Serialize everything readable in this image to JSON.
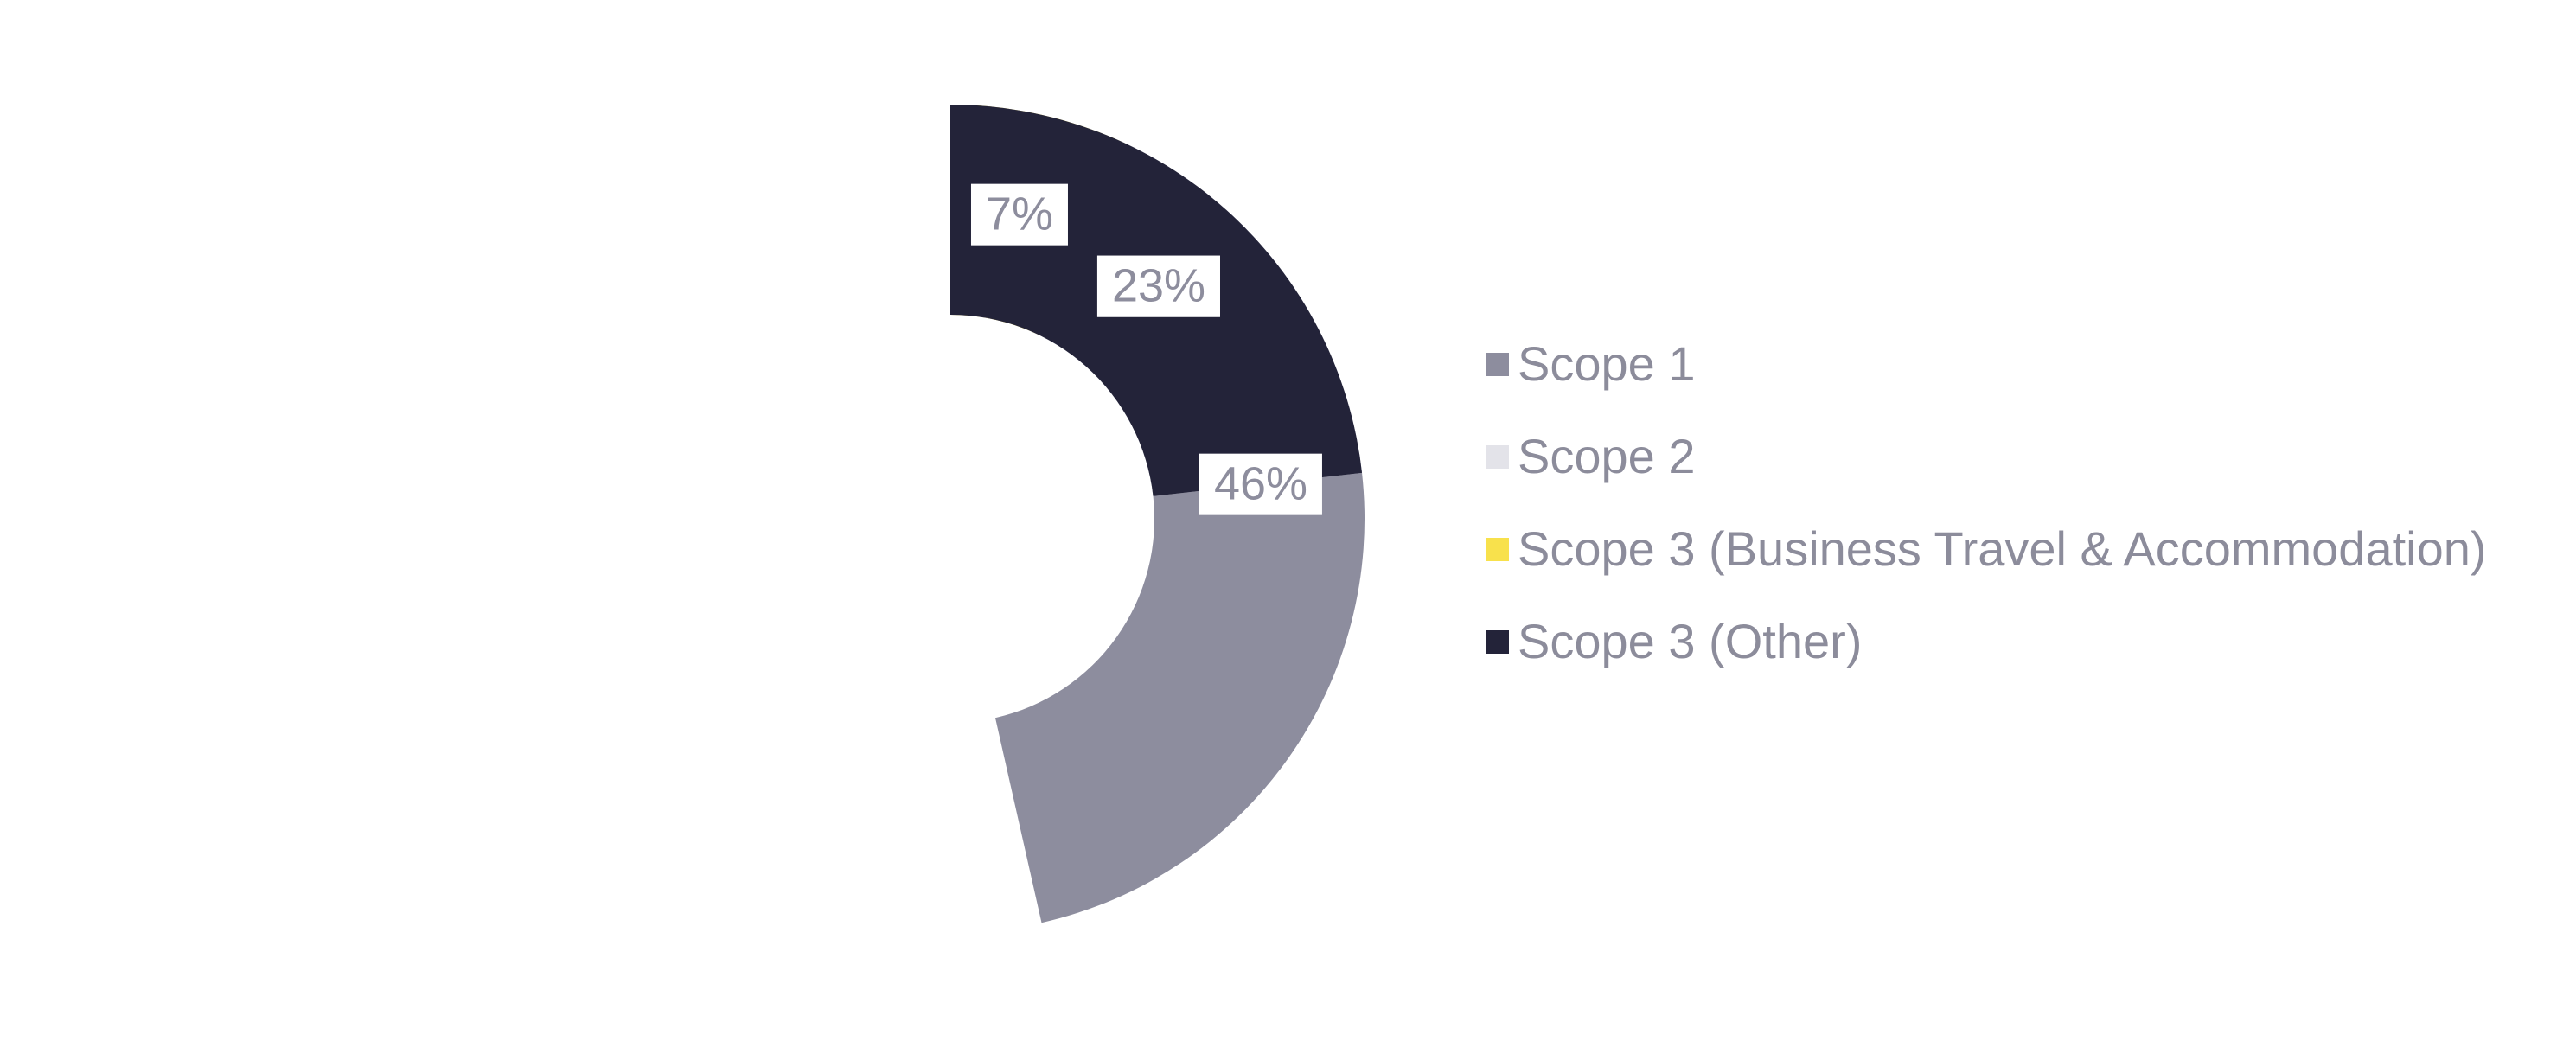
{
  "chart_data": {
    "type": "pie",
    "subtype": "donut",
    "title": "",
    "categories": [
      "Scope 1",
      "Scope 2",
      "Scope 3 (Business Travel & Accommodation)",
      "Scope 3 (Other)"
    ],
    "values": [
      46,
      23,
      7,
      23
    ],
    "unit": "%",
    "slice_labels": [
      "46%",
      "23%",
      "7%",
      "23%"
    ],
    "colors": [
      "#8D8D9E",
      "#E3E3E9",
      "#F8E14C",
      "#232339"
    ],
    "start_angle_deg": 0,
    "direction": "clockwise",
    "legend_position": "right",
    "slice_label_text_color": "#8D8D9D",
    "slice_label_background_color": "#FFFFFF",
    "legend_text_color": "#8C8C9B",
    "background_color": "#FFFFFF"
  }
}
